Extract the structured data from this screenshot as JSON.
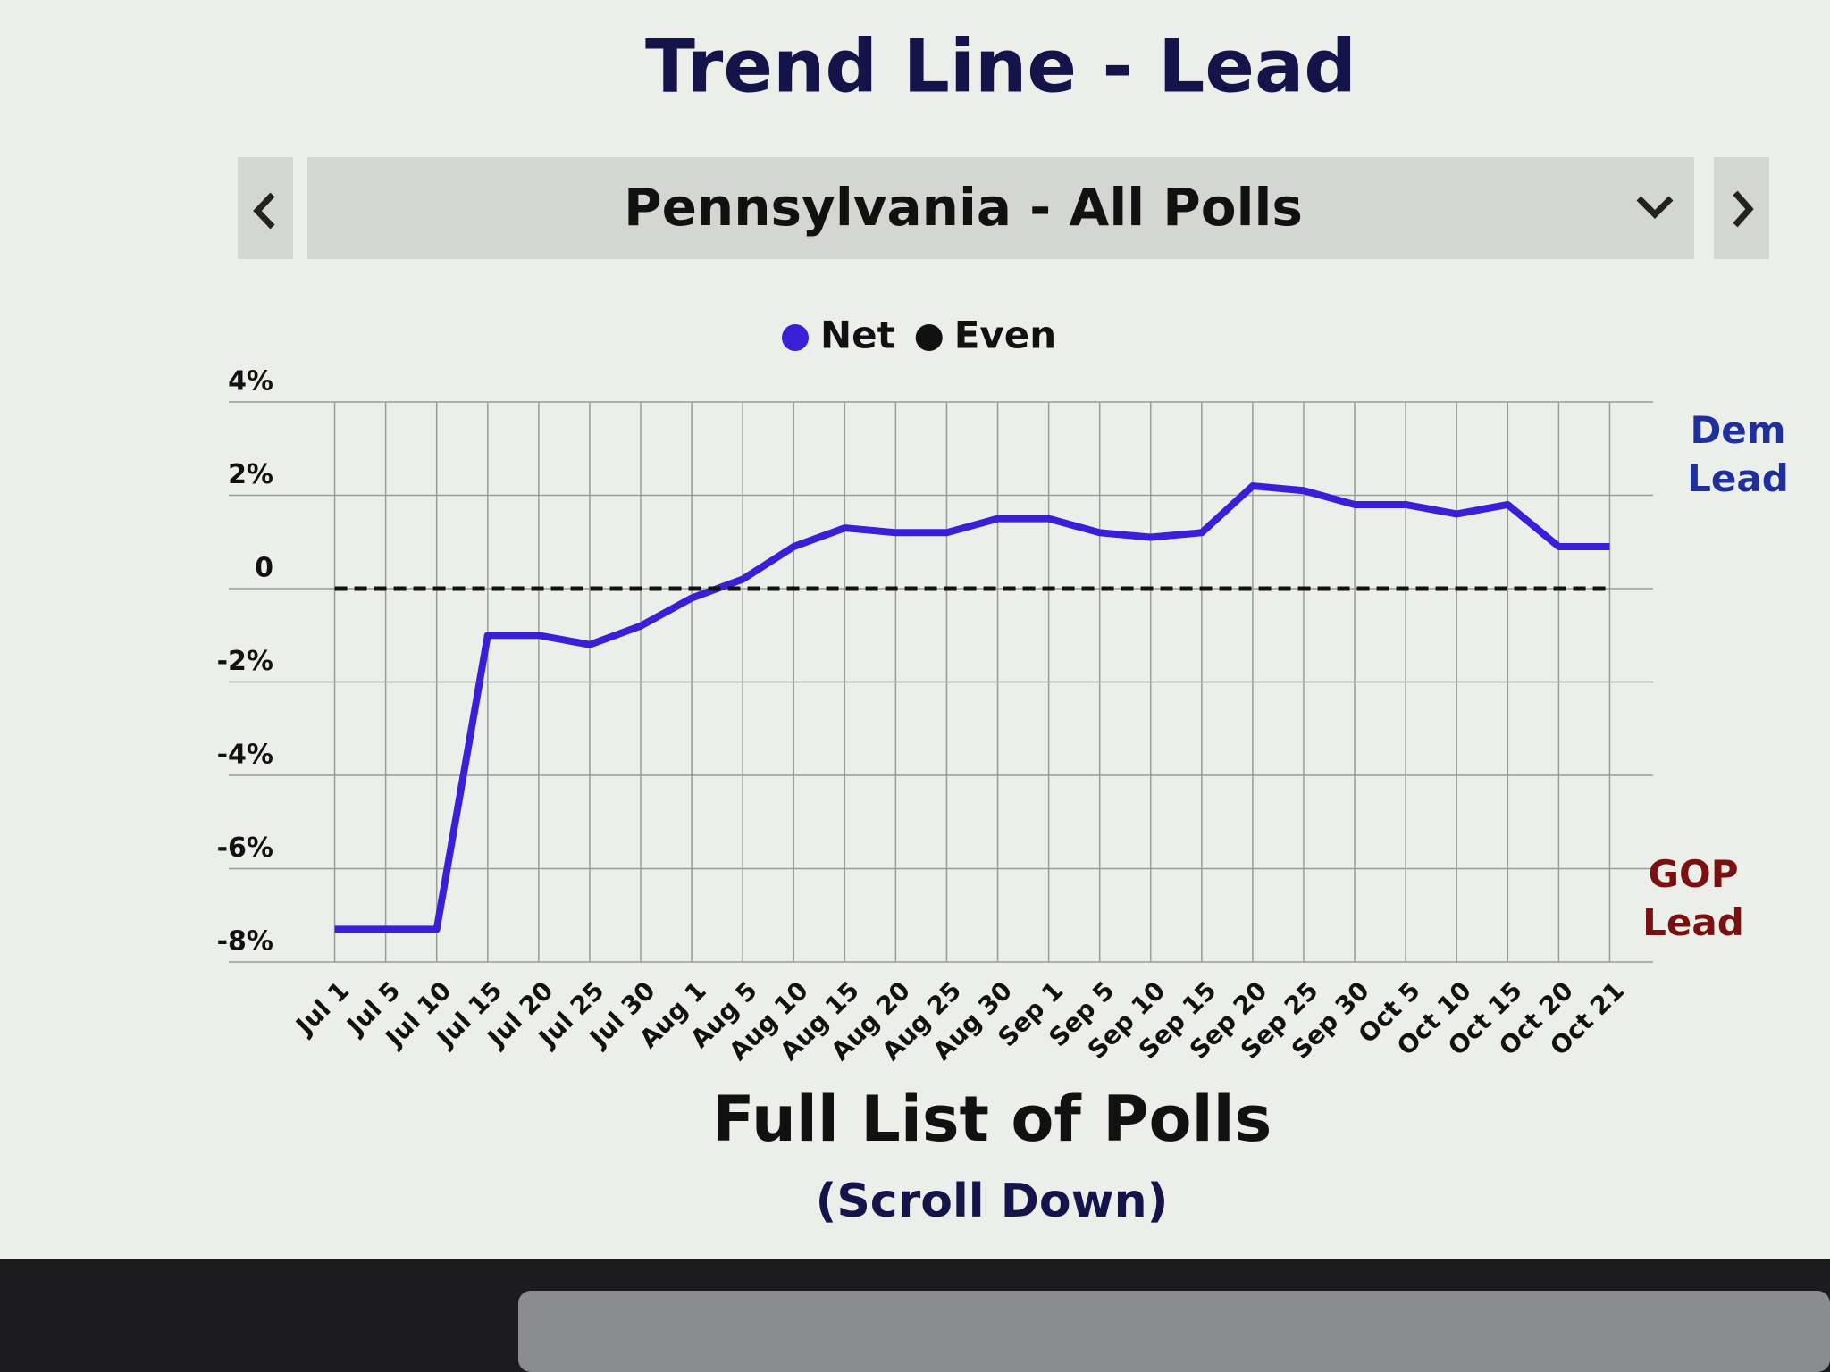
{
  "chart_data": {
    "type": "line",
    "title": "Trend Line - Lead",
    "selector": "Pennsylvania - All Polls",
    "categories": [
      "Jul 1",
      "Jul 5",
      "Jul 10",
      "Jul 15",
      "Jul 20",
      "Jul 25",
      "Jul 30",
      "Aug 1",
      "Aug 5",
      "Aug 10",
      "Aug 15",
      "Aug 20",
      "Aug 25",
      "Aug 30",
      "Sep 1",
      "Sep 5",
      "Sep 10",
      "Sep 15",
      "Sep 20",
      "Sep 25",
      "Sep 30",
      "Oct 5",
      "Oct 10",
      "Oct 15",
      "Oct 20",
      "Oct 21"
    ],
    "series": [
      {
        "name": "Net",
        "color": "#3b1fd8",
        "dashed": false,
        "values": [
          -7.3,
          -7.3,
          -7.3,
          -1.0,
          -1.0,
          -1.2,
          -0.8,
          -0.2,
          0.2,
          0.9,
          1.3,
          1.2,
          1.2,
          1.5,
          1.5,
          1.2,
          1.1,
          1.2,
          2.2,
          2.1,
          1.8,
          1.8,
          1.6,
          1.8,
          0.9,
          0.9
        ]
      },
      {
        "name": "Even",
        "color": "#111111",
        "dashed": true,
        "values": [
          0,
          0,
          0,
          0,
          0,
          0,
          0,
          0,
          0,
          0,
          0,
          0,
          0,
          0,
          0,
          0,
          0,
          0,
          0,
          0,
          0,
          0,
          0,
          0,
          0,
          0
        ]
      }
    ],
    "ylim": [
      -8,
      4
    ],
    "yticks": [
      {
        "value": 4,
        "label": "4%"
      },
      {
        "value": 2,
        "label": "2%"
      },
      0,
      {
        "value": -2,
        "label": "-2%"
      },
      {
        "value": -4,
        "label": "-4%"
      },
      {
        "value": -6,
        "label": "-6%"
      },
      {
        "value": -8,
        "label": "-8%"
      }
    ],
    "grid": true,
    "annotations": [
      {
        "text": "Dem Lead",
        "color": "#1f2f9e"
      },
      {
        "text": "GOP Lead",
        "color": "#7a1010"
      }
    ],
    "footer": {
      "title": "Full List of Polls",
      "subtitle": "(Scroll Down)"
    }
  }
}
